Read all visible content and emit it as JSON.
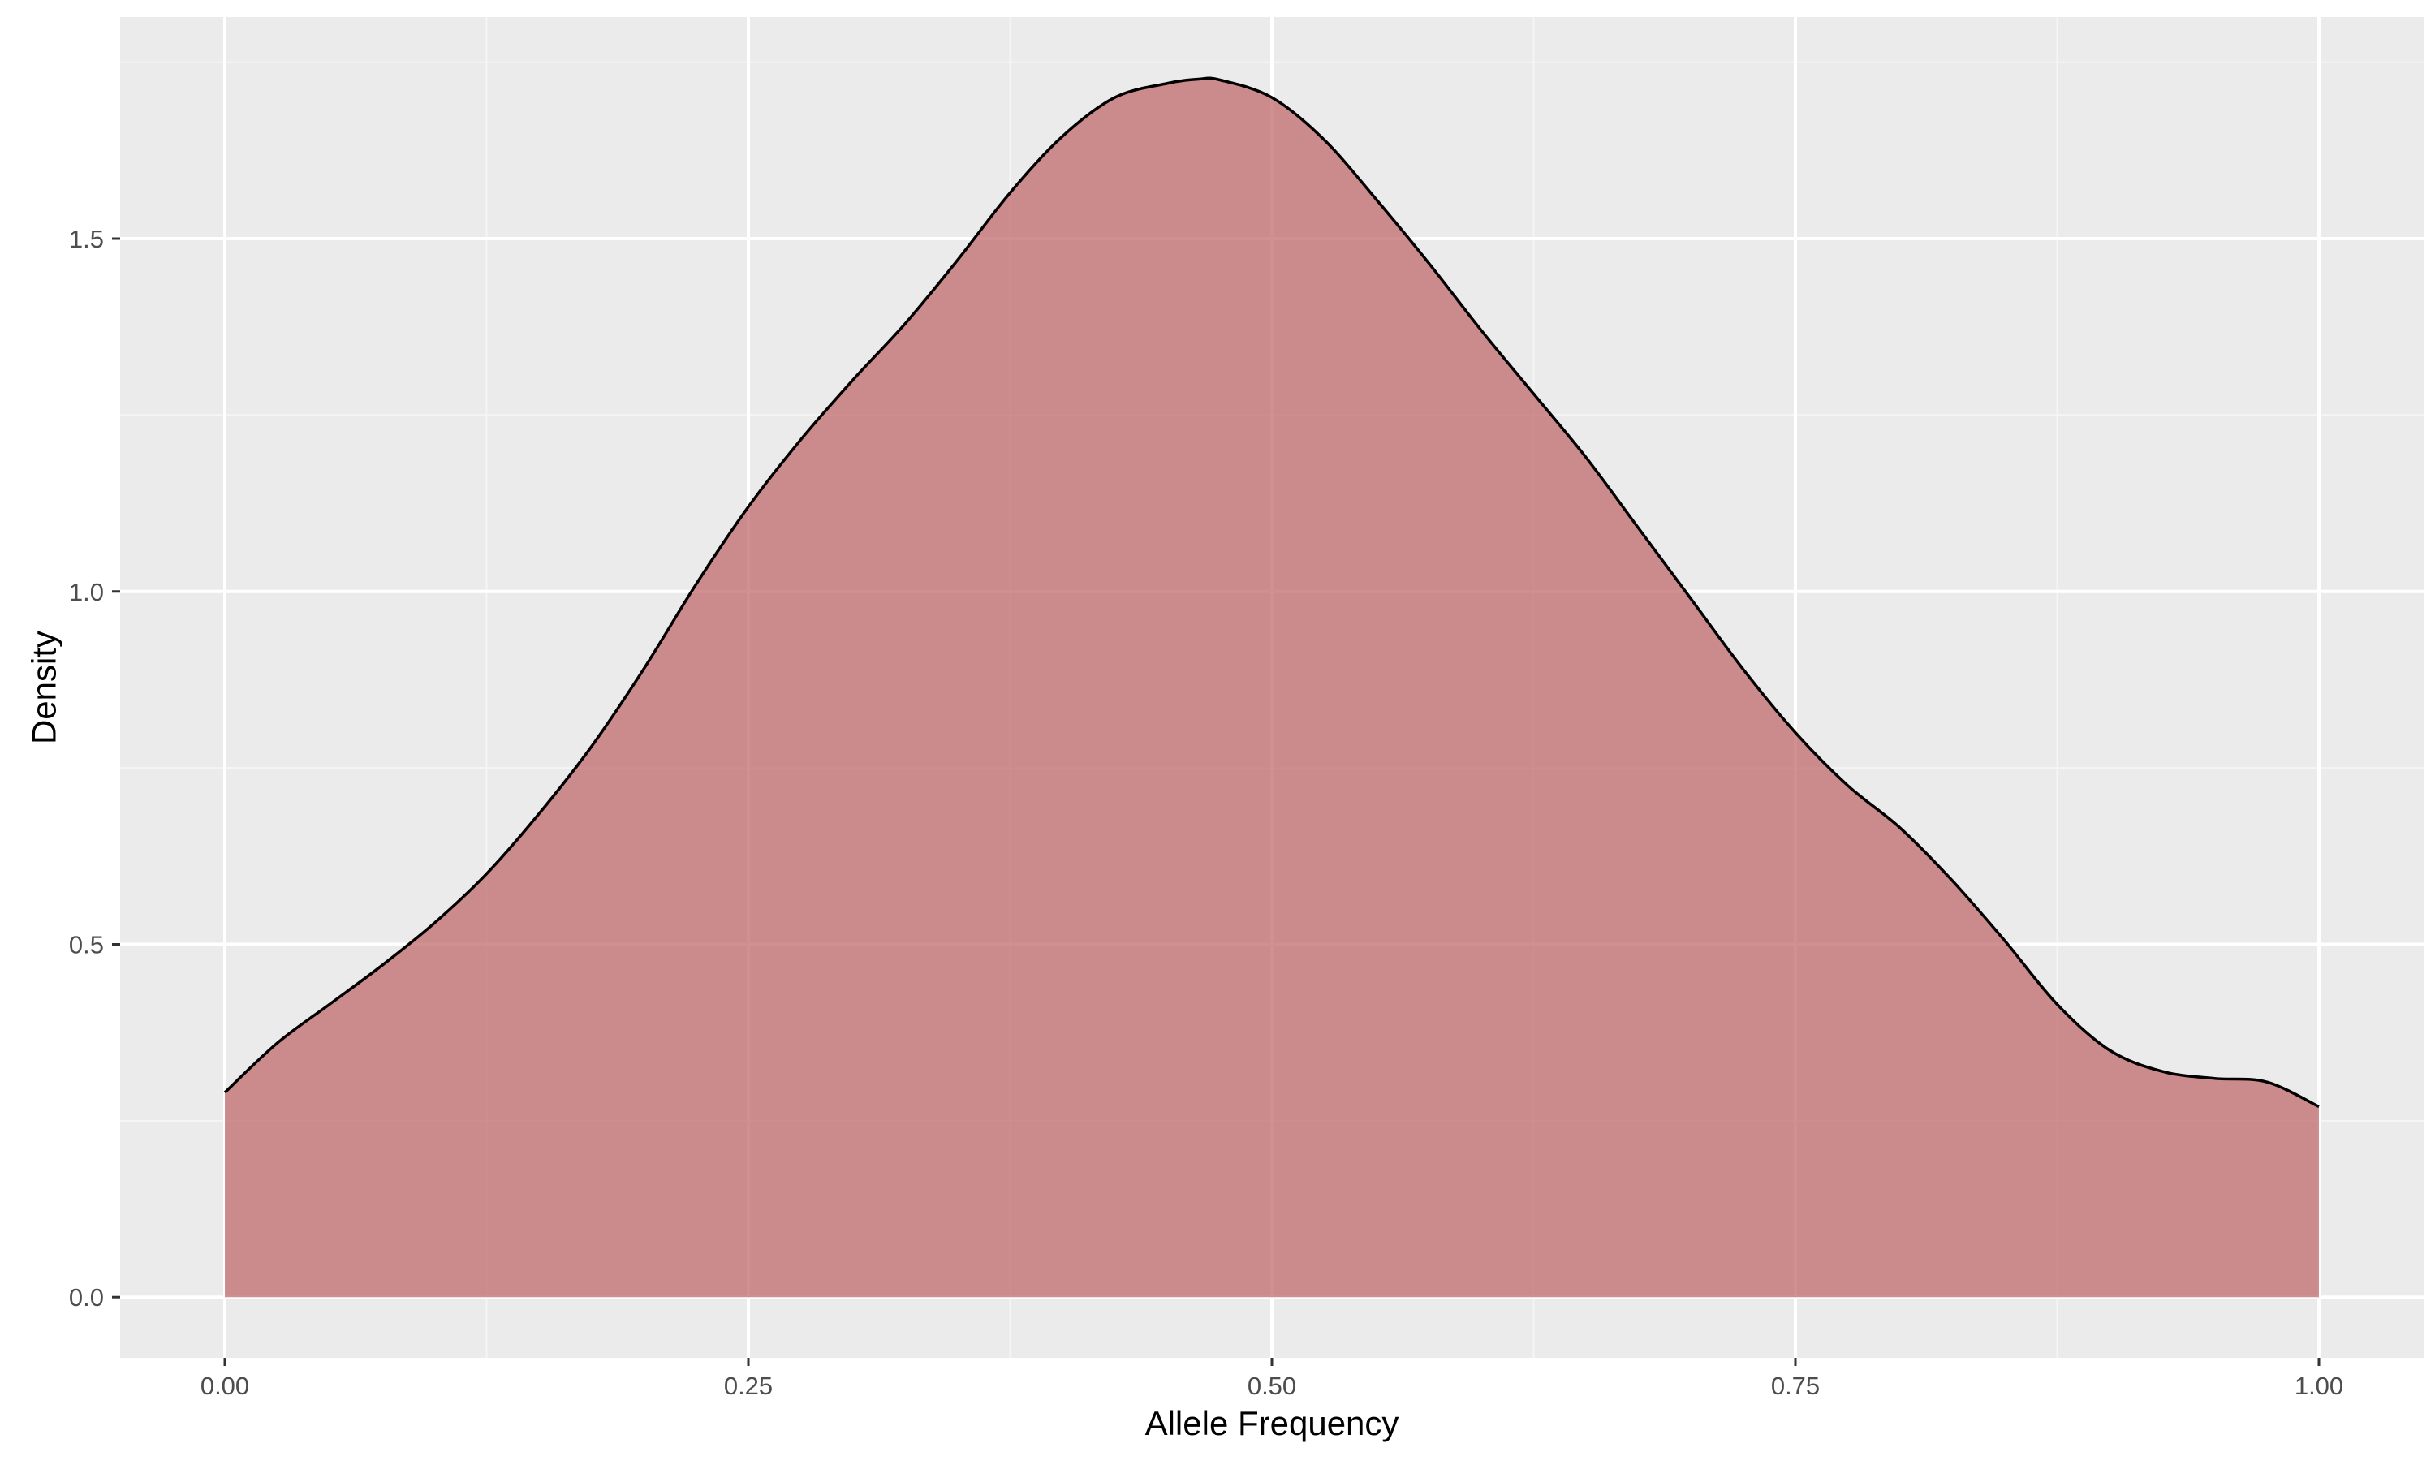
{
  "chart_data": {
    "type": "area",
    "title": "",
    "xlabel": "Allele Frequency",
    "ylabel": "Density",
    "xlim": [
      -0.05,
      1.05
    ],
    "ylim": [
      -0.086,
      1.814
    ],
    "x_ticks": [
      0.0,
      0.25,
      0.5,
      0.75,
      1.0
    ],
    "x_tick_labels": [
      "0.00",
      "0.25",
      "0.50",
      "0.75",
      "1.00"
    ],
    "y_ticks": [
      0.0,
      0.5,
      1.0,
      1.5
    ],
    "y_tick_labels": [
      "0.0",
      "0.5",
      "1.0",
      "1.5"
    ],
    "grid": true,
    "legend": "none",
    "series": [
      {
        "x": [
          0.0,
          0.025,
          0.05,
          0.075,
          0.1,
          0.125,
          0.15,
          0.175,
          0.2,
          0.225,
          0.25,
          0.275,
          0.3,
          0.325,
          0.35,
          0.375,
          0.4,
          0.425,
          0.45,
          0.465,
          0.475,
          0.5,
          0.525,
          0.55,
          0.575,
          0.6,
          0.625,
          0.65,
          0.675,
          0.7,
          0.725,
          0.75,
          0.775,
          0.8,
          0.825,
          0.85,
          0.875,
          0.9,
          0.925,
          0.95,
          0.975,
          1.0
        ],
        "y": [
          0.29,
          0.36,
          0.415,
          0.47,
          0.53,
          0.6,
          0.685,
          0.78,
          0.89,
          1.01,
          1.12,
          1.215,
          1.3,
          1.38,
          1.47,
          1.565,
          1.645,
          1.7,
          1.72,
          1.726,
          1.725,
          1.7,
          1.64,
          1.555,
          1.465,
          1.37,
          1.28,
          1.19,
          1.09,
          0.99,
          0.89,
          0.8,
          0.725,
          0.665,
          0.59,
          0.505,
          0.415,
          0.35,
          0.32,
          0.31,
          0.305,
          0.27
        ]
      }
    ]
  },
  "style": {
    "panel_bg": "#ebebeb",
    "grid_major": "#ffffff",
    "grid_minor": "#f5f5f5",
    "fill": "#c0696b",
    "fill_opacity": 0.75,
    "line": "#000000",
    "tick_color": "#333333"
  }
}
